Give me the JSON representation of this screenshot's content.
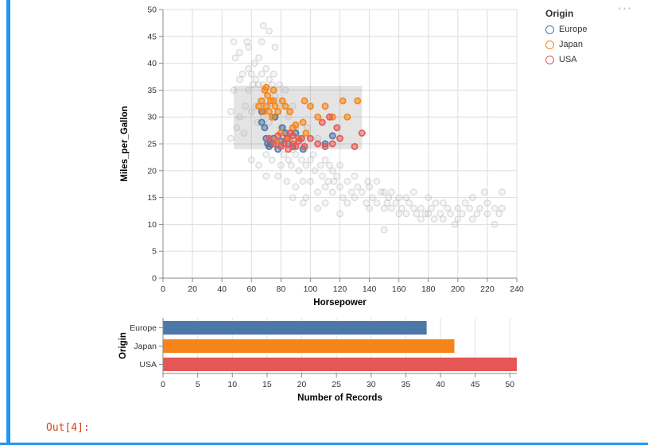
{
  "page": {
    "out_prompt": "Out[4]:",
    "actions_icon": "⋯",
    "accent_color": "#2196f3"
  },
  "legend": {
    "title": "Origin",
    "items": [
      {
        "label": "Europe",
        "color": "#4c78a8"
      },
      {
        "label": "Japan",
        "color": "#f58518"
      },
      {
        "label": "USA",
        "color": "#e45756"
      }
    ]
  },
  "chart_data": [
    {
      "type": "scatter",
      "title": "",
      "xlabel": "Horsepower",
      "ylabel": "Miles_per_Gallon",
      "xlim": [
        0,
        240
      ],
      "ylim": [
        0,
        50
      ],
      "x_ticks": [
        0,
        20,
        40,
        60,
        80,
        100,
        120,
        140,
        160,
        180,
        200,
        220,
        240
      ],
      "y_ticks": [
        0,
        5,
        10,
        15,
        20,
        25,
        30,
        35,
        40,
        45,
        50
      ],
      "grid": true,
      "brush": {
        "x": [
          48,
          135
        ],
        "y": [
          24,
          35.8
        ],
        "color": "#858585",
        "opacity": 0.22
      },
      "series": [
        {
          "name": "unselected",
          "color": "#b0b0b0",
          "points": [
            [
              46,
              26
            ],
            [
              46,
              31
            ],
            [
              48,
              35
            ],
            [
              48,
              44
            ],
            [
              49,
              41
            ],
            [
              50,
              28
            ],
            [
              52,
              30
            ],
            [
              52,
              37
            ],
            [
              52,
              42
            ],
            [
              54,
              38
            ],
            [
              55,
              27
            ],
            [
              56,
              32
            ],
            [
              57,
              44
            ],
            [
              58,
              35
            ],
            [
              58,
              39
            ],
            [
              58,
              43
            ],
            [
              60,
              22
            ],
            [
              60,
              31
            ],
            [
              60,
              38
            ],
            [
              61,
              36
            ],
            [
              62,
              40
            ],
            [
              63,
              32
            ],
            [
              63,
              37
            ],
            [
              64,
              29
            ],
            [
              65,
              21
            ],
            [
              65,
              36
            ],
            [
              65,
              41
            ],
            [
              66,
              33
            ],
            [
              67,
              38
            ],
            [
              67,
              44
            ],
            [
              68,
              30
            ],
            [
              68,
              36
            ],
            [
              68,
              47
            ],
            [
              69,
              31
            ],
            [
              70,
              19
            ],
            [
              70,
              23
            ],
            [
              70,
              39
            ],
            [
              71,
              32
            ],
            [
              72,
              29
            ],
            [
              72,
              37
            ],
            [
              72,
              46
            ],
            [
              74,
              22
            ],
            [
              74,
              36
            ],
            [
              75,
              30
            ],
            [
              75,
              38
            ],
            [
              76,
              34
            ],
            [
              76,
              43
            ],
            [
              77,
              25
            ],
            [
              78,
              19
            ],
            [
              78,
              33
            ],
            [
              79,
              36
            ],
            [
              80,
              21
            ],
            [
              80,
              28
            ],
            [
              81,
              32
            ],
            [
              82,
              23
            ],
            [
              83,
              35
            ],
            [
              84,
              18
            ],
            [
              84,
              27
            ],
            [
              85,
              22
            ],
            [
              85,
              30
            ],
            [
              86,
              26
            ],
            [
              87,
              21
            ],
            [
              88,
              15
            ],
            [
              88,
              24
            ],
            [
              88,
              32
            ],
            [
              90,
              17
            ],
            [
              90,
              23
            ],
            [
              90,
              28
            ],
            [
              92,
              20
            ],
            [
              93,
              26
            ],
            [
              94,
              22
            ],
            [
              95,
              14
            ],
            [
              95,
              18
            ],
            [
              95,
              25
            ],
            [
              96,
              24
            ],
            [
              97,
              15
            ],
            [
              97,
              21
            ],
            [
              98,
              28
            ],
            [
              100,
              18
            ],
            [
              100,
              22
            ],
            [
              102,
              23
            ],
            [
              103,
              20
            ],
            [
              105,
              13
            ],
            [
              105,
              16
            ],
            [
              105,
              26
            ],
            [
              107,
              21
            ],
            [
              108,
              19
            ],
            [
              110,
              14
            ],
            [
              110,
              17
            ],
            [
              110,
              22
            ],
            [
              112,
              18
            ],
            [
              113,
              21
            ],
            [
              115,
              16
            ],
            [
              115,
              20
            ],
            [
              116,
              18
            ],
            [
              118,
              19
            ],
            [
              120,
              12
            ],
            [
              120,
              17
            ],
            [
              120,
              21
            ],
            [
              122,
              15
            ],
            [
              125,
              14
            ],
            [
              125,
              18
            ],
            [
              128,
              16
            ],
            [
              130,
              15
            ],
            [
              130,
              19
            ],
            [
              132,
              17
            ],
            [
              135,
              16
            ],
            [
              138,
              14
            ],
            [
              139,
              18
            ],
            [
              140,
              13
            ],
            [
              140,
              17
            ],
            [
              142,
              15
            ],
            [
              145,
              14
            ],
            [
              145,
              18
            ],
            [
              148,
              16
            ],
            [
              150,
              9
            ],
            [
              150,
              13
            ],
            [
              150,
              16
            ],
            [
              152,
              14
            ],
            [
              153,
              15
            ],
            [
              155,
              13
            ],
            [
              155,
              16
            ],
            [
              158,
              14
            ],
            [
              160,
              12
            ],
            [
              160,
              15
            ],
            [
              162,
              13
            ],
            [
              165,
              12
            ],
            [
              165,
              15
            ],
            [
              167,
              14
            ],
            [
              170,
              13
            ],
            [
              170,
              16
            ],
            [
              172,
              12
            ],
            [
              175,
              11
            ],
            [
              175,
              13
            ],
            [
              178,
              12
            ],
            [
              180,
              12
            ],
            [
              180,
              15
            ],
            [
              182,
              13
            ],
            [
              184,
              11
            ],
            [
              185,
              14
            ],
            [
              188,
              12
            ],
            [
              190,
              11
            ],
            [
              190,
              14
            ],
            [
              193,
              13
            ],
            [
              195,
              12
            ],
            [
              198,
              10
            ],
            [
              200,
              11
            ],
            [
              200,
              13
            ],
            [
              203,
              12
            ],
            [
              205,
              14
            ],
            [
              208,
              13
            ],
            [
              210,
              11
            ],
            [
              210,
              15
            ],
            [
              213,
              12
            ],
            [
              215,
              13
            ],
            [
              218,
              16
            ],
            [
              220,
              12
            ],
            [
              220,
              14
            ],
            [
              225,
              10
            ],
            [
              225,
              13
            ],
            [
              228,
              12
            ],
            [
              230,
              13
            ],
            [
              230,
              16
            ]
          ]
        },
        {
          "name": "Europe",
          "color": "#4c78a8",
          "points": [
            [
              67,
              31
            ],
            [
              67,
              29
            ],
            [
              69,
              28
            ],
            [
              70,
              26
            ],
            [
              71,
              25
            ],
            [
              72,
              24.5
            ],
            [
              73,
              25
            ],
            [
              75,
              26
            ],
            [
              76,
              30
            ],
            [
              78,
              24
            ],
            [
              80,
              25.5
            ],
            [
              81,
              28
            ],
            [
              83,
              27
            ],
            [
              85,
              25
            ],
            [
              88,
              24.5
            ],
            [
              90,
              27
            ],
            [
              95,
              24
            ],
            [
              110,
              25
            ],
            [
              115,
              26.5
            ]
          ]
        },
        {
          "name": "Japan",
          "color": "#f58518",
          "points": [
            [
              65,
              32
            ],
            [
              67,
              33
            ],
            [
              68,
              31
            ],
            [
              69,
              35
            ],
            [
              70,
              32
            ],
            [
              70,
              35.5
            ],
            [
              71,
              34
            ],
            [
              72,
              31
            ],
            [
              73,
              33
            ],
            [
              74,
              30
            ],
            [
              75,
              33
            ],
            [
              75,
              35
            ],
            [
              76,
              32
            ],
            [
              77,
              25.5
            ],
            [
              78,
              31
            ],
            [
              80,
              27
            ],
            [
              81,
              33
            ],
            [
              83,
              32
            ],
            [
              85,
              26
            ],
            [
              86,
              31
            ],
            [
              88,
              28
            ],
            [
              90,
              28.5
            ],
            [
              92,
              26
            ],
            [
              95,
              29
            ],
            [
              96,
              33
            ],
            [
              97,
              27
            ],
            [
              100,
              32
            ],
            [
              105,
              30
            ],
            [
              110,
              32
            ],
            [
              115,
              30
            ],
            [
              122,
              33
            ],
            [
              125,
              30
            ],
            [
              132,
              33
            ]
          ]
        },
        {
          "name": "USA",
          "color": "#e45756",
          "points": [
            [
              72,
              26
            ],
            [
              75,
              25
            ],
            [
              78,
              26.5
            ],
            [
              80,
              24.5
            ],
            [
              82,
              25
            ],
            [
              84,
              26
            ],
            [
              85,
              24
            ],
            [
              86,
              27
            ],
            [
              88,
              25
            ],
            [
              88,
              26.5
            ],
            [
              90,
              24.5
            ],
            [
              92,
              25.5
            ],
            [
              94,
              26
            ],
            [
              96,
              24.5
            ],
            [
              100,
              26
            ],
            [
              105,
              25
            ],
            [
              108,
              29
            ],
            [
              110,
              24.5
            ],
            [
              113,
              30
            ],
            [
              115,
              25
            ],
            [
              118,
              28
            ],
            [
              120,
              26
            ],
            [
              130,
              24.5
            ],
            [
              135,
              27
            ]
          ]
        }
      ]
    },
    {
      "type": "bar",
      "orientation": "horizontal",
      "categories": [
        "Europe",
        "Japan",
        "USA"
      ],
      "values": [
        38,
        42,
        51
      ],
      "colors": [
        "#4c78a8",
        "#f58518",
        "#e45756"
      ],
      "xlabel": "Number of Records",
      "ylabel": "Origin",
      "xlim": [
        0,
        51
      ],
      "x_ticks": [
        0,
        5,
        10,
        15,
        20,
        25,
        30,
        35,
        40,
        45,
        50
      ],
      "grid": true
    }
  ]
}
